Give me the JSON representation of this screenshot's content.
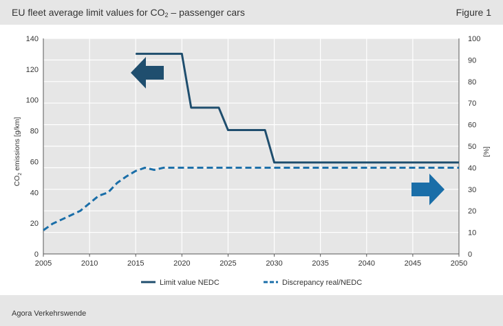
{
  "header": {
    "title_pre": "EU fleet average limit values for CO",
    "title_sub": "2",
    "title_post": " – passenger cars",
    "figure_label": "Figure 1"
  },
  "footer": {
    "source": "Agora Verkehrswende"
  },
  "chart_data": {
    "type": "line",
    "ylabel_left_pre": "CO",
    "ylabel_left_sub": "2",
    "ylabel_left_post": " emissions [g/km]",
    "ylabel_right": "[%]",
    "xlim": [
      2005,
      2050
    ],
    "ylim_left": [
      0,
      140
    ],
    "ylim_right": [
      0,
      100
    ],
    "x_ticks": [
      2005,
      2010,
      2015,
      2020,
      2025,
      2030,
      2035,
      2040,
      2045,
      2050
    ],
    "y_left_ticks": [
      0,
      20,
      40,
      60,
      80,
      100,
      120,
      140
    ],
    "y_right_ticks": [
      0,
      10,
      20,
      30,
      40,
      50,
      60,
      70,
      80,
      90,
      100
    ],
    "grid": true,
    "series": [
      {
        "name": "Limit value NEDC",
        "axis": "left",
        "color": "#1f4e6e",
        "style": "solid",
        "points": [
          [
            2015,
            130
          ],
          [
            2020,
            130
          ],
          [
            2021,
            95
          ],
          [
            2024,
            95
          ],
          [
            2025,
            80.5
          ],
          [
            2029,
            80.5
          ],
          [
            2030,
            59.4
          ],
          [
            2050,
            59.4
          ]
        ]
      },
      {
        "name": "Discrepancy real/NEDC",
        "axis": "right",
        "color": "#1a6ea8",
        "style": "dashed",
        "points": [
          [
            2005,
            11
          ],
          [
            2006,
            14
          ],
          [
            2007,
            16
          ],
          [
            2008,
            18
          ],
          [
            2009,
            20
          ],
          [
            2010,
            23.5
          ],
          [
            2011,
            27
          ],
          [
            2012,
            28.5
          ],
          [
            2013,
            33
          ],
          [
            2014,
            36
          ],
          [
            2015,
            38.5
          ],
          [
            2016,
            40
          ],
          [
            2017,
            39
          ],
          [
            2018,
            40
          ],
          [
            2020,
            40
          ],
          [
            2050,
            40
          ]
        ]
      }
    ],
    "annotations": [
      {
        "type": "arrow",
        "direction": "left",
        "meaning": "left axis",
        "color": "#1f4e6e"
      },
      {
        "type": "arrow",
        "direction": "right",
        "meaning": "right axis",
        "color": "#1a6ea8"
      }
    ],
    "legend": {
      "placement": "bottom-center",
      "items": [
        "Limit value NEDC",
        "Discrepancy real/NEDC"
      ]
    }
  }
}
